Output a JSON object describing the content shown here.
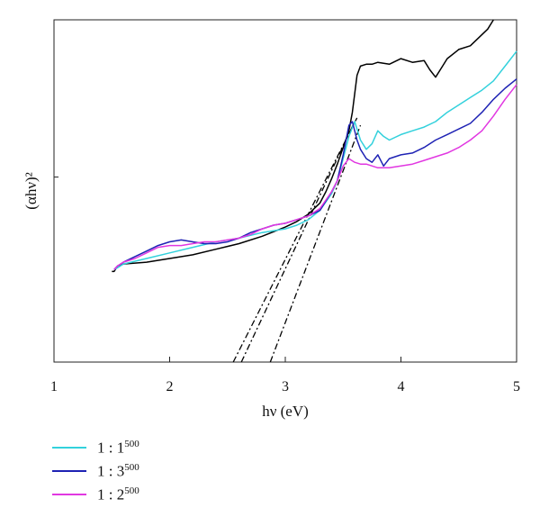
{
  "chart_data": {
    "type": "line",
    "xlabel": "hν (eV)",
    "ylabel": "(αhν)²",
    "xlim": [
      1,
      5
    ],
    "x_ticks": [
      "1",
      "2",
      "3",
      "4",
      "5"
    ],
    "y_ticks_labeled": false,
    "grid": false,
    "legend_position": "bottom-left",
    "series": [
      {
        "name": "",
        "color": "#000000",
        "x": [
          1.5,
          1.52,
          1.55,
          1.6,
          1.8,
          2.0,
          2.2,
          2.4,
          2.6,
          2.8,
          3.0,
          3.1,
          3.2,
          3.3,
          3.35,
          3.4,
          3.45,
          3.5,
          3.55,
          3.58,
          3.6,
          3.62,
          3.65,
          3.7,
          3.75,
          3.8,
          3.9,
          4.0,
          4.1,
          4.2,
          4.25,
          4.3,
          4.35,
          4.4,
          4.5,
          4.6,
          4.7,
          4.75,
          4.8
        ],
        "y": [
          0.49,
          0.49,
          0.52,
          0.53,
          0.54,
          0.56,
          0.58,
          0.61,
          0.64,
          0.68,
          0.73,
          0.76,
          0.8,
          0.86,
          0.92,
          0.99,
          1.07,
          1.16,
          1.25,
          1.35,
          1.45,
          1.55,
          1.6,
          1.61,
          1.61,
          1.62,
          1.61,
          1.64,
          1.62,
          1.63,
          1.58,
          1.54,
          1.59,
          1.64,
          1.69,
          1.71,
          1.77,
          1.8,
          1.85
        ]
      },
      {
        "name": "1 : 1⁵⁰⁰",
        "label_base": "1 : 1",
        "label_sup": "500",
        "color": "#33D1DC",
        "x": [
          1.52,
          1.55,
          1.6,
          1.8,
          2.0,
          2.2,
          2.4,
          2.6,
          2.8,
          3.0,
          3.1,
          3.2,
          3.3,
          3.4,
          3.45,
          3.5,
          3.55,
          3.6,
          3.65,
          3.7,
          3.75,
          3.8,
          3.85,
          3.9,
          4.0,
          4.1,
          4.2,
          4.3,
          4.4,
          4.5,
          4.6,
          4.7,
          4.8,
          4.9,
          5.0
        ],
        "y": [
          0.5,
          0.51,
          0.53,
          0.56,
          0.59,
          0.62,
          0.65,
          0.67,
          0.7,
          0.72,
          0.74,
          0.77,
          0.82,
          0.91,
          0.98,
          1.1,
          1.22,
          1.3,
          1.2,
          1.15,
          1.18,
          1.25,
          1.22,
          1.2,
          1.23,
          1.25,
          1.27,
          1.3,
          1.35,
          1.39,
          1.43,
          1.47,
          1.52,
          1.6,
          1.68
        ]
      },
      {
        "name": "1 : 3⁵⁰⁰",
        "label_base": "1 : 3",
        "label_sup": "500",
        "color": "#1E22B4",
        "x": [
          1.52,
          1.55,
          1.6,
          1.7,
          1.8,
          1.9,
          2.0,
          2.1,
          2.2,
          2.3,
          2.4,
          2.5,
          2.6,
          2.7,
          2.8,
          2.9,
          3.0,
          3.1,
          3.2,
          3.3,
          3.4,
          3.45,
          3.5,
          3.55,
          3.58,
          3.62,
          3.65,
          3.7,
          3.75,
          3.8,
          3.85,
          3.9,
          4.0,
          4.1,
          4.2,
          4.3,
          4.4,
          4.5,
          4.6,
          4.7,
          4.8,
          4.9,
          5.0
        ],
        "y": [
          0.5,
          0.52,
          0.54,
          0.57,
          0.6,
          0.63,
          0.65,
          0.66,
          0.65,
          0.64,
          0.64,
          0.65,
          0.67,
          0.7,
          0.72,
          0.74,
          0.75,
          0.77,
          0.79,
          0.82,
          0.92,
          0.98,
          1.12,
          1.28,
          1.3,
          1.2,
          1.15,
          1.1,
          1.08,
          1.12,
          1.06,
          1.1,
          1.12,
          1.13,
          1.16,
          1.2,
          1.23,
          1.26,
          1.29,
          1.35,
          1.42,
          1.48,
          1.53
        ]
      },
      {
        "name": "1 : 2⁵⁰⁰",
        "label_base": "1 : 2",
        "label_sup": "500",
        "color": "#E137E1",
        "x": [
          1.52,
          1.55,
          1.6,
          1.7,
          1.8,
          1.9,
          2.0,
          2.1,
          2.2,
          2.3,
          2.4,
          2.5,
          2.6,
          2.7,
          2.8,
          2.9,
          3.0,
          3.1,
          3.2,
          3.3,
          3.4,
          3.45,
          3.5,
          3.55,
          3.6,
          3.65,
          3.7,
          3.8,
          3.9,
          4.0,
          4.1,
          4.2,
          4.3,
          4.4,
          4.5,
          4.6,
          4.7,
          4.8,
          4.9,
          5.0
        ],
        "y": [
          0.5,
          0.52,
          0.54,
          0.56,
          0.59,
          0.62,
          0.63,
          0.63,
          0.64,
          0.65,
          0.65,
          0.66,
          0.67,
          0.69,
          0.72,
          0.74,
          0.75,
          0.77,
          0.79,
          0.83,
          0.92,
          0.98,
          1.06,
          1.1,
          1.08,
          1.07,
          1.07,
          1.05,
          1.05,
          1.06,
          1.07,
          1.09,
          1.11,
          1.13,
          1.16,
          1.2,
          1.25,
          1.33,
          1.42,
          1.5
        ]
      }
    ],
    "tangent_lines": [
      {
        "style": "dash-dot",
        "x": [
          2.55,
          3.62
        ],
        "y": [
          0.0,
          1.32
        ]
      },
      {
        "style": "dash-dot",
        "x": [
          2.62,
          3.6
        ],
        "y": [
          0.0,
          1.3
        ]
      },
      {
        "style": "dash-dot",
        "x": [
          2.87,
          3.65
        ],
        "y": [
          0.0,
          1.28
        ]
      }
    ],
    "ylim": [
      0,
      1.85
    ],
    "y_tick_marks": [
      0,
      1.0
    ]
  }
}
